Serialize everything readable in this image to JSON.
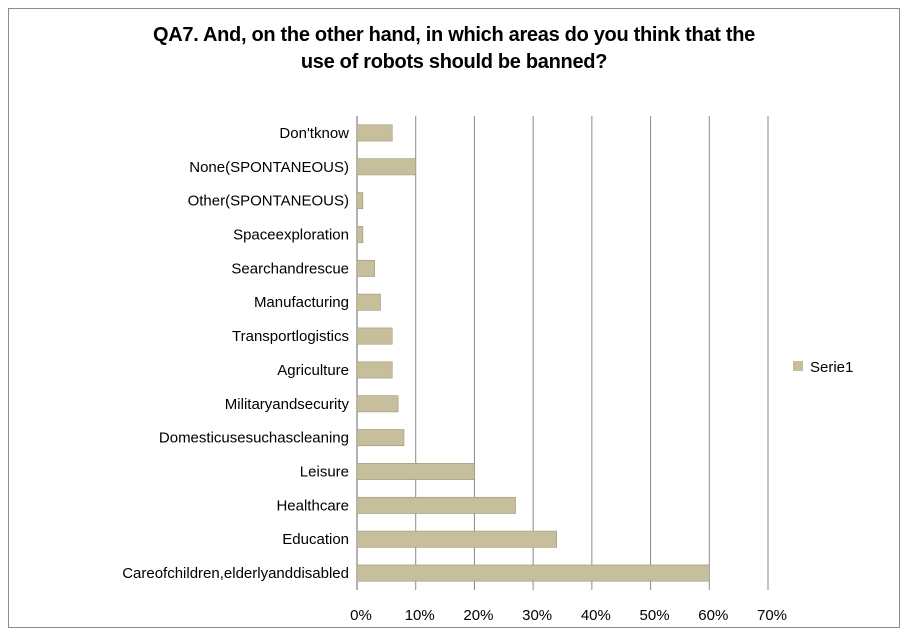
{
  "chart_data": {
    "type": "bar",
    "orientation": "horizontal",
    "title": "QA7. And, on the other hand, in which areas do you think that the\nuse of robots should be banned?",
    "categories": [
      "Don't\u001fknow\u001f",
      "None\u001f(SPONTANEOUS)\u001f",
      "Other\u001f(SPONTANEOUS)\u001f",
      "Space\u001fexploration\u001f",
      "Search\u001fand\u001frescue\u001f",
      "Manufacturing\u001f",
      "Transport\u001flogistics\u001f",
      "Agriculture\u001f",
      "Military\u001fand\u001fsecurity\u001f",
      "Domestic\u001fuse\u001fsuch\u001fas\u001fcleaning\u001f",
      "Leisure\u001f",
      "Healthcare\u001f",
      "Education\u001f",
      "Care\u001fof\u001fchildren,\u001felderly\u001fand\u001fdisabled\u001f"
    ],
    "series": [
      {
        "name": "Serie1\u001f",
        "values": [
          0.06,
          0.1,
          0.01,
          0.01,
          0.03,
          0.04,
          0.06,
          0.06,
          0.07,
          0.08,
          0.2,
          0.27,
          0.34,
          0.6
        ]
      }
    ],
    "x_ticks": [
      "0%\u001f",
      "10%\u001f",
      "20%\u001f",
      "30%\u001f",
      "40%\u001f",
      "50%\u001f",
      "60%\u001f",
      "70%\u001f"
    ],
    "xlim": [
      0,
      0.7
    ],
    "grid": "vertical",
    "legend_position": "right",
    "bar_color": "#c7bf9c",
    "bar_edge_color": "#9c9476"
  }
}
